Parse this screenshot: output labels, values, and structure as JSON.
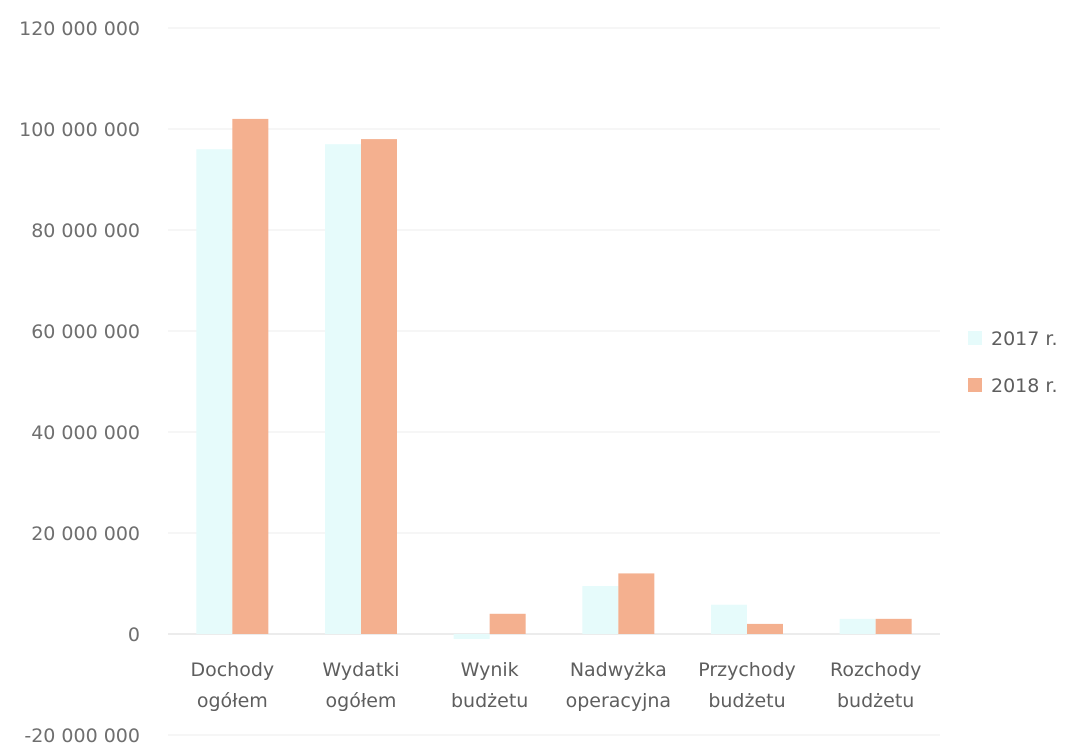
{
  "chart_data": {
    "type": "bar",
    "categories": [
      [
        "Dochody",
        "ogółem"
      ],
      [
        "Wydatki",
        "ogółem"
      ],
      [
        "Wynik",
        "budżetu"
      ],
      [
        "Nadwyżka",
        "operacyjna"
      ],
      [
        "Przychody",
        "budżetu"
      ],
      [
        "Rozchody",
        "budżetu"
      ]
    ],
    "series": [
      {
        "name": "2017 r.",
        "color": "#e6fbfb",
        "values": [
          96000000,
          97000000,
          -1000000,
          9500000,
          5800000,
          3000000
        ]
      },
      {
        "name": "2018 r.",
        "color": "#f4b08f",
        "values": [
          102000000,
          98000000,
          4000000,
          12000000,
          2000000,
          3000000
        ]
      }
    ],
    "ylim": [
      -20000000,
      120000000
    ],
    "yticks": [
      -20000000,
      0,
      20000000,
      40000000,
      60000000,
      80000000,
      100000000,
      120000000
    ],
    "ytick_labels": [
      "-20 000 000",
      "0",
      "20 000 000",
      "40 000 000",
      "60 000 000",
      "80 000 000",
      "100 000 000",
      "120 000 000"
    ],
    "grid": true,
    "legend_position": "right",
    "title": "",
    "xlabel": "",
    "ylabel": ""
  }
}
